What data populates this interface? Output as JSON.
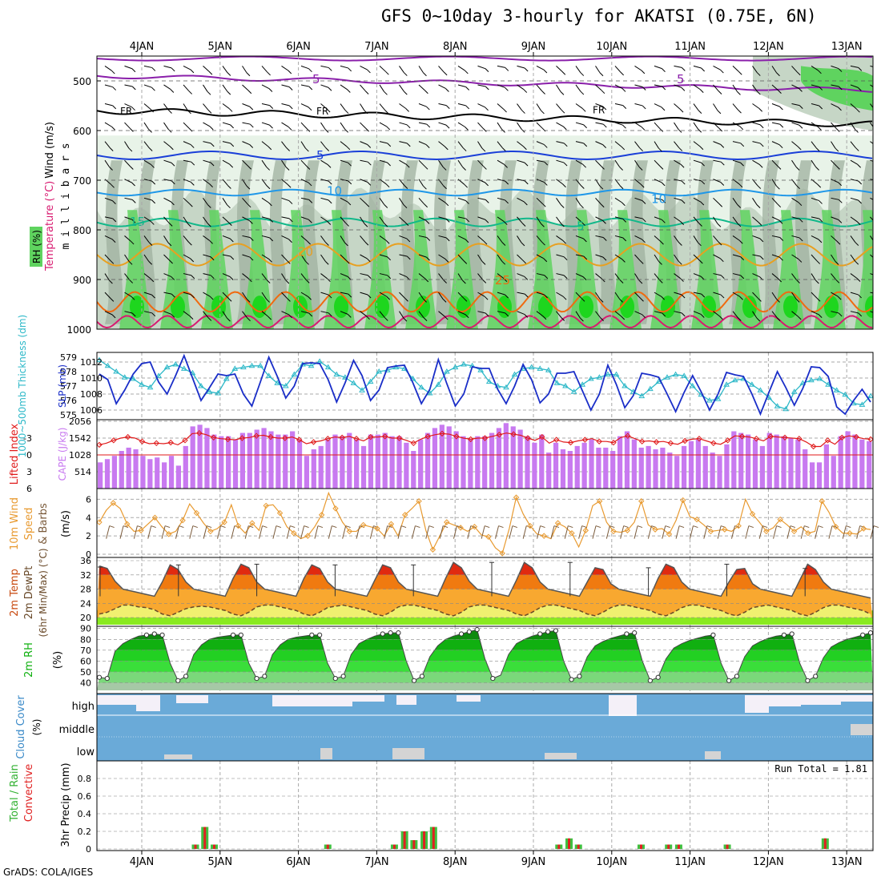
{
  "title": "GFS 0~10day 3-hourly for AKATSI (0.75E, 6N)",
  "credit": "GrADS: COLA/IGES",
  "dates": [
    "4JAN",
    "5JAN",
    "6JAN",
    "7JAN",
    "8JAN",
    "9JAN",
    "10JAN",
    "11JAN",
    "12JAN",
    "13JAN"
  ],
  "colors": {
    "rh_dark": "#9fb09f",
    "rh_mid": "#c6d6c6",
    "rh_light": "#e8f3e8",
    "rh_green": "#5fd35f",
    "rh_bright": "#1ed61e",
    "wind_purple": "#8a1faa",
    "freezing": "#000000",
    "t5": "#1a3fd8",
    "t10": "#1f97e8",
    "t15": "#11b88a",
    "t20": "#e8a020",
    "t25": "#f06a10",
    "t30": "#d81a70",
    "thickness": "#2cb8c8",
    "slp": "#1a2ec8",
    "cape": "#c87af0",
    "li": "#e01a1a",
    "wind10": "#e89a30",
    "barb": "#7a5a3a",
    "temp_hi": "#e02a10",
    "temp_mid": "#f07a10",
    "temp_low": "#f8a830",
    "dew": "#f0f070",
    "rh_ground": "#8aea20",
    "cloud_blue": "#6aaad8",
    "cloud_white": "#f4f0f8",
    "cloud_grey": "#d4d4d4",
    "precip_green": "#40c040",
    "precip_red": "#e02020"
  },
  "chart_data": [
    {
      "id": "upper_air",
      "type": "heatmap",
      "ylabel_parts": [
        "RH (%)",
        "Temperature (°C)",
        "Wind (m/s)"
      ],
      "ylabel_units": "m i l l i b a r s",
      "y_ticks": [
        500,
        600,
        700,
        800,
        900,
        1000
      ],
      "ylim": [
        1000,
        450
      ],
      "contour_labels": [
        {
          "text": "5",
          "series": "wind_purple"
        },
        {
          "text": "5",
          "series": "wind_purple"
        },
        {
          "text": "FR",
          "series": "freezing"
        },
        {
          "text": "FR",
          "series": "freezing"
        },
        {
          "text": "FR",
          "series": "freezing"
        },
        {
          "text": "5",
          "series": "t5"
        },
        {
          "text": "10",
          "series": "t10"
        },
        {
          "text": "10",
          "series": "t10"
        },
        {
          "text": "15",
          "series": "t15"
        },
        {
          "text": "5",
          "series": "t15"
        },
        {
          "text": "20",
          "series": "t20"
        },
        {
          "text": "25",
          "series": "t25"
        }
      ],
      "rh_legend": [
        "RH (%)"
      ]
    },
    {
      "id": "thickness_slp",
      "type": "line",
      "ylabel_left": "1000~500mb Thickness (dm)",
      "ylabel_right": "SLP (mb)",
      "left_ticks": [
        575,
        576,
        577,
        578,
        579
      ],
      "right_ticks": [
        1006,
        1008,
        1010,
        1012
      ],
      "thickness": [
        578.8,
        578.4,
        578.0,
        577.6,
        577.5,
        577.1,
        576.9,
        577.7,
        578.3,
        578.5,
        578.2,
        577.9,
        577.0,
        576.6,
        576.5,
        577.5,
        578.2,
        578.3,
        578.4,
        578.4,
        577.7,
        577.2,
        577.0,
        577.8,
        578.5,
        578.4,
        578.7,
        578.3,
        577.8,
        577.6,
        577.2,
        576.7,
        577.3,
        578.0,
        578.1,
        578.3,
        578.2,
        577.5,
        576.9,
        576.5,
        577.1,
        578.0,
        578.3,
        578.5,
        578.4,
        578.1,
        577.3,
        577.0,
        576.9,
        577.8,
        578.2,
        578.3,
        578.2,
        578.1,
        577.2,
        577.0,
        576.6,
        577.1,
        577.5,
        577.6,
        577.8,
        577.8,
        577.0,
        576.6,
        576.3,
        576.8,
        577.3,
        577.6,
        577.8,
        577.7,
        577.0,
        576.4,
        576.0,
        576.1,
        577.1,
        577.4,
        577.5,
        577.1,
        576.7,
        576.2,
        575.6,
        575.4,
        576.6,
        577.2,
        577.4,
        577.5,
        577.1,
        576.7,
        576.4,
        575.8,
        575.7,
        576.3
      ],
      "slp": [
        1010.5,
        1009.8,
        1006.8,
        1008.5,
        1010.5,
        1011.8,
        1012.0,
        1009.5,
        1008.0,
        1010.3,
        1012.8,
        1010.0,
        1007.2,
        1008.8,
        1010.5,
        1010.3,
        1010.5,
        1008.0,
        1006.5,
        1009.5,
        1012.6,
        1010.2,
        1007.5,
        1009.0,
        1011.8,
        1011.9,
        1011.8,
        1009.8,
        1007.0,
        1009.4,
        1012.2,
        1010.3,
        1007.2,
        1008.5,
        1011.3,
        1011.5,
        1011.6,
        1009.4,
        1006.8,
        1008.6,
        1012.3,
        1009.3,
        1006.5,
        1008.0,
        1011.4,
        1011.2,
        1011.2,
        1008.6,
        1006.8,
        1009.0,
        1011.7,
        1009.8,
        1006.9,
        1008.0,
        1010.6,
        1010.6,
        1010.8,
        1008.4,
        1006.0,
        1008.0,
        1011.6,
        1009.2,
        1006.3,
        1007.8,
        1010.6,
        1010.4,
        1010.1,
        1008.0,
        1005.8,
        1008.2,
        1010.3,
        1008.3,
        1006.0,
        1008.0,
        1010.7,
        1010.4,
        1010.2,
        1008.0,
        1005.5,
        1008.2,
        1010.8,
        1008.8,
        1006.6,
        1008.7,
        1011.4,
        1011.3,
        1010.2,
        1006.4,
        1005.5,
        1007.2,
        1008.6,
        1007.0
      ]
    },
    {
      "id": "cape_li",
      "type": "bar",
      "ylabel_left": "Lifted Index",
      "ylabel_right": "CAPE (J/kg)",
      "left_ticks": [
        -3,
        0,
        3,
        6
      ],
      "right_ticks": [
        514,
        1028,
        1542,
        2056
      ],
      "cape": [
        800,
        900,
        1000,
        1150,
        1250,
        1200,
        1000,
        900,
        950,
        800,
        1000,
        700,
        1300,
        1900,
        1950,
        1850,
        1650,
        1600,
        1600,
        1500,
        1700,
        1700,
        1800,
        1850,
        1750,
        1650,
        1650,
        1750,
        1500,
        1000,
        1200,
        1300,
        1500,
        1650,
        1600,
        1700,
        1500,
        1300,
        1650,
        1650,
        1700,
        1600,
        1600,
        1400,
        1150,
        1500,
        1700,
        1850,
        1950,
        1900,
        1750,
        1600,
        1500,
        1600,
        1600,
        1700,
        1850,
        2000,
        1900,
        1800,
        1600,
        1400,
        1650,
        1100,
        1400,
        1200,
        1150,
        1300,
        1400,
        1500,
        1250,
        1250,
        1150,
        1600,
        1750,
        1500,
        1250,
        1300,
        1200,
        1250,
        1100,
        1000,
        1300,
        1450,
        1500,
        1300,
        1100,
        1000,
        1350,
        1750,
        1700,
        1650,
        1500,
        1300,
        1700,
        1650,
        1600,
        1550,
        1500,
        1200,
        800,
        800,
        1350,
        1000,
        1600,
        1750,
        1650,
        1500,
        1450
      ],
      "lifted_index": [
        -1.8,
        -2.1,
        -2.6,
        -3.0,
        -3.2,
        -3.0,
        -2.4,
        -2.0,
        -2.1,
        -2.0,
        -2.2,
        -1.8,
        -2.6,
        -3.8,
        -3.9,
        -3.6,
        -3.1,
        -2.9,
        -2.8,
        -2.7,
        -3.0,
        -3.1,
        -3.4,
        -3.5,
        -3.2,
        -3.0,
        -3.0,
        -3.2,
        -2.7,
        -2.0,
        -2.3,
        -2.5,
        -2.9,
        -3.2,
        -3.1,
        -3.3,
        -2.9,
        -2.5,
        -3.2,
        -3.2,
        -3.3,
        -3.0,
        -3.0,
        -2.6,
        -2.1,
        -2.8,
        -3.3,
        -3.6,
        -3.8,
        -3.7,
        -3.3,
        -3.0,
        -2.8,
        -3.0,
        -3.0,
        -3.3,
        -3.6,
        -3.9,
        -3.7,
        -3.5,
        -3.0,
        -2.6,
        -3.2,
        -2.1,
        -2.7,
        -2.3,
        -2.2,
        -2.5,
        -2.7,
        -2.9,
        -2.4,
        -2.4,
        -2.2,
        -3.1,
        -3.4,
        -2.9,
        -2.4,
        -2.5,
        -2.3,
        -2.4,
        -2.1,
        -1.9,
        -2.5,
        -2.8,
        -2.9,
        -2.5,
        -2.1,
        -1.9,
        -2.6,
        -3.4,
        -3.3,
        -3.2,
        -2.9,
        -2.5,
        -3.3,
        -3.2,
        -3.1,
        -3.0,
        -2.9,
        -2.3,
        -1.5,
        -1.5,
        -2.6,
        -1.9,
        -3.1,
        -3.4,
        -3.2,
        -2.9,
        -2.8
      ]
    },
    {
      "id": "wind10m",
      "type": "line",
      "ylabel_parts": [
        "10m Wind",
        "Speed",
        "& Barbs",
        "(m/s)"
      ],
      "y_ticks": [
        0,
        2,
        4,
        6
      ],
      "ylim": [
        0,
        7
      ],
      "speed": [
        3.5,
        4.8,
        5.6,
        5.0,
        3.3,
        2.5,
        2.6,
        3.3,
        4.0,
        3.0,
        2.2,
        2.5,
        3.7,
        5.5,
        4.5,
        3.4,
        2.5,
        2.8,
        3.5,
        5.4,
        3.1,
        2.3,
        3.4,
        2.6,
        5.3,
        5.4,
        4.5,
        3.0,
        2.3,
        1.7,
        2.0,
        3.0,
        4.3,
        6.7,
        5.0,
        3.5,
        2.5,
        2.5,
        3.2,
        3.0,
        2.8,
        2.0,
        3.3,
        2.0,
        4.3,
        5.0,
        5.8,
        2.6,
        0.5,
        2.0,
        3.5,
        3.2,
        2.9,
        2.5,
        3.0,
        2.1,
        1.9,
        0.7,
        0.1,
        2.8,
        6.2,
        4.4,
        3.1,
        2.2,
        2.0,
        1.7,
        3.4,
        3.0,
        2.3,
        0.8,
        2.6,
        5.3,
        5.8,
        3.5,
        2.5,
        2.4,
        2.6,
        3.5,
        5.8,
        3.2,
        2.7,
        2.8,
        2.2,
        3.7,
        5.9,
        4.1,
        3.8,
        3.2,
        2.5,
        2.6,
        2.7,
        2.5,
        3.1,
        6.0,
        4.4,
        3.5,
        2.5,
        2.9,
        3.8,
        3.2,
        2.5,
        3.0,
        2.3,
        2.5,
        5.8,
        4.6,
        3.0,
        2.3,
        2.3,
        2.2,
        2.8,
        2.7
      ]
    },
    {
      "id": "temp2m",
      "type": "area",
      "ylabel_parts": [
        "2m Temp",
        "2m DewPt",
        "(6hr Min/Max) (°C)"
      ],
      "y_ticks": [
        20,
        24,
        28,
        32,
        36
      ],
      "ylim": [
        18,
        36
      ],
      "temp": [
        34.5,
        33.8,
        30.2,
        28.0,
        27.5,
        27.0,
        26.5,
        26.0,
        30.0,
        34.8,
        33.5,
        30.0,
        28.0,
        27.5,
        27.0,
        26.5,
        26.0,
        31.0,
        35.0,
        34.0,
        30.0,
        28.0,
        27.5,
        27.0,
        26.5,
        26.0,
        31.0,
        34.8,
        33.8,
        30.0,
        28.0,
        27.5,
        27.0,
        26.5,
        26.0,
        30.5,
        34.8,
        34.0,
        30.0,
        28.0,
        27.5,
        27.0,
        26.5,
        26.0,
        31.0,
        35.5,
        34.0,
        30.2,
        28.0,
        27.5,
        27.0,
        26.5,
        26.0,
        30.5,
        35.5,
        34.0,
        30.0,
        28.0,
        27.5,
        27.0,
        26.5,
        26.0,
        30.0,
        34.0,
        33.5,
        29.5,
        28.0,
        27.5,
        27.0,
        26.5,
        26.0,
        31.0,
        35.0,
        34.0,
        30.0,
        28.0,
        27.5,
        27.0,
        26.5,
        26.0,
        30.0,
        33.5,
        33.8,
        29.5,
        28.0,
        27.5,
        27.0,
        26.5,
        26.0,
        30.5,
        35.0,
        33.5,
        30.0,
        28.0,
        27.5,
        27.0,
        26.5,
        26.0,
        25.5
      ],
      "dewpoint": [
        21.0,
        21.5,
        22.5,
        23.5,
        23.5,
        23.0,
        22.8,
        22.2,
        21.0,
        20.5,
        21.5,
        22.5,
        23.0,
        23.2,
        23.0,
        22.5,
        22.0,
        21.0,
        20.5,
        21.5,
        23.0,
        23.5,
        23.5,
        23.0,
        22.5,
        22.0,
        21.0,
        20.5,
        21.5,
        22.8,
        23.2,
        23.5,
        23.0,
        22.5,
        22.0,
        21.0,
        20.5,
        21.5,
        23.0,
        23.5,
        23.5,
        23.0,
        22.5,
        22.0,
        21.0,
        20.5,
        21.5,
        23.0,
        23.5,
        23.5,
        23.0,
        22.5,
        22.0,
        21.0,
        20.5,
        21.5,
        22.8,
        23.5,
        23.5,
        23.0,
        22.5,
        22.0,
        21.0,
        20.5,
        21.5,
        22.8,
        23.5,
        23.5,
        23.0,
        22.5,
        22.0,
        21.0,
        20.5,
        21.5,
        22.8,
        23.5,
        23.5,
        23.0,
        22.5,
        22.0,
        21.0,
        20.5,
        21.5,
        22.8,
        23.2,
        23.5,
        23.0,
        22.5,
        22.0,
        21.0,
        20.5,
        21.5,
        22.8,
        23.5,
        23.5,
        23.0,
        22.5,
        22.0,
        21.0
      ],
      "max_markers": [
        34.2,
        34.8,
        35.0,
        34.8,
        34.8,
        35.5,
        35.5,
        34.0,
        35.0,
        33.8,
        35.0
      ],
      "min_markers": [
        25.5,
        26.0,
        26.0,
        26.0,
        26.0,
        26.0,
        26.0,
        26.0,
        26.0,
        26.0
      ]
    },
    {
      "id": "rh2m",
      "type": "area",
      "ylabel_parts": [
        "2m RH",
        "(%)"
      ],
      "y_ticks": [
        40,
        50,
        60,
        70,
        80,
        90
      ],
      "ylim": [
        33,
        92
      ],
      "rh": [
        45,
        44,
        69,
        76,
        80,
        83,
        84,
        85,
        84,
        58,
        42,
        46,
        66,
        75,
        80,
        82,
        83,
        84,
        84,
        58,
        44,
        46,
        66,
        75,
        80,
        82,
        83,
        84,
        84,
        58,
        44,
        46,
        66,
        76,
        80,
        83,
        85,
        86,
        86,
        60,
        42,
        46,
        64,
        74,
        80,
        83,
        85,
        87,
        89,
        62,
        44,
        47,
        66,
        76,
        80,
        83,
        85,
        87,
        88,
        60,
        43,
        46,
        64,
        74,
        78,
        81,
        83,
        85,
        86,
        60,
        42,
        45,
        62,
        72,
        76,
        79,
        81,
        83,
        84,
        58,
        42,
        46,
        64,
        74,
        78,
        81,
        83,
        84,
        85,
        58,
        42,
        46,
        63,
        73,
        77,
        80,
        82,
        84,
        86
      ]
    },
    {
      "id": "cloud",
      "type": "area",
      "ylabel_parts": [
        "Cloud Cover",
        "(%)"
      ],
      "level_labels": [
        "high",
        "middle",
        "low"
      ]
    },
    {
      "id": "precip",
      "type": "bar",
      "ylabel_parts": [
        "Total / Rain",
        "Convective",
        "3hr Precip (mm)"
      ],
      "y_ticks": [
        0,
        0.2,
        0.4,
        0.6,
        0.8
      ],
      "ylim": [
        0,
        1
      ],
      "run_total_label": "Run Total = 1.81",
      "bars": [
        {
          "day": 0.68,
          "value": 0.05
        },
        {
          "day": 0.8,
          "value": 0.25
        },
        {
          "day": 0.92,
          "value": 0.05
        },
        {
          "day": 2.37,
          "value": 0.05
        },
        {
          "day": 3.22,
          "value": 0.05
        },
        {
          "day": 3.35,
          "value": 0.2
        },
        {
          "day": 3.47,
          "value": 0.1
        },
        {
          "day": 3.6,
          "value": 0.2
        },
        {
          "day": 3.72,
          "value": 0.25
        },
        {
          "day": 5.32,
          "value": 0.05
        },
        {
          "day": 5.45,
          "value": 0.12
        },
        {
          "day": 5.57,
          "value": 0.05
        },
        {
          "day": 6.37,
          "value": 0.05
        },
        {
          "day": 6.72,
          "value": 0.05
        },
        {
          "day": 6.85,
          "value": 0.05
        },
        {
          "day": 7.47,
          "value": 0.05
        },
        {
          "day": 8.72,
          "value": 0.12
        }
      ]
    }
  ]
}
